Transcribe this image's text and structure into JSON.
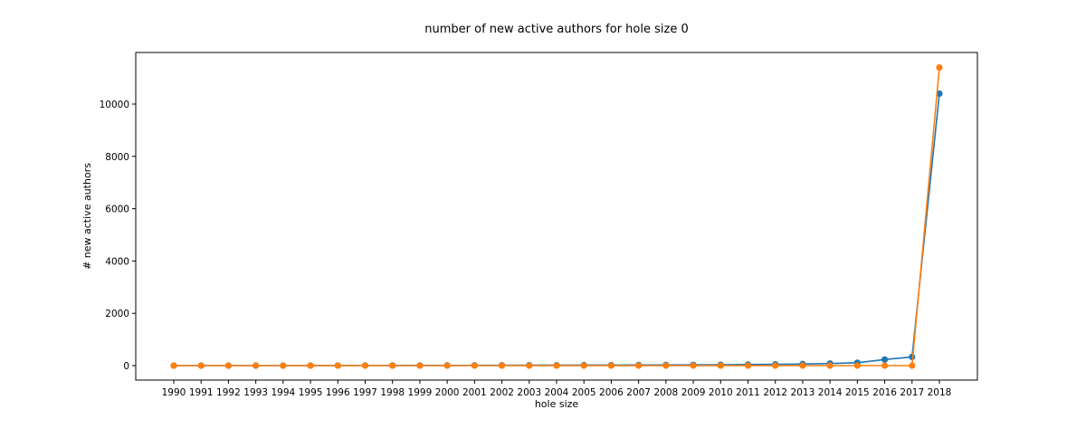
{
  "chart_data": {
    "type": "line",
    "title": "number of new active authors for hole size 0",
    "xlabel": "hole size",
    "ylabel": "# new active authors",
    "categories": [
      "1990",
      "1991",
      "1992",
      "1993",
      "1994",
      "1995",
      "1996",
      "1997",
      "1998",
      "1999",
      "2000",
      "2001",
      "2002",
      "2003",
      "2004",
      "2005",
      "2006",
      "2007",
      "2008",
      "2009",
      "2010",
      "2011",
      "2012",
      "2013",
      "2014",
      "2015",
      "2016",
      "2017",
      "2018"
    ],
    "ylim": [
      -500,
      12000
    ],
    "yticks": [
      0,
      2000,
      4000,
      6000,
      8000,
      10000
    ],
    "ytick_labels": [
      "0",
      "2000",
      "4000",
      "6000",
      "8000",
      "10000"
    ],
    "grid": false,
    "legend": "none",
    "series": [
      {
        "color": "#1f77b4",
        "marker": "circle",
        "values": [
          0,
          0,
          0,
          0,
          0,
          2,
          3,
          4,
          5,
          6,
          8,
          10,
          12,
          14,
          16,
          18,
          20,
          22,
          25,
          28,
          32,
          40,
          50,
          60,
          80,
          110,
          230,
          330,
          10400
        ]
      },
      {
        "color": "#ff7f0e",
        "marker": "circle",
        "values": [
          0,
          0,
          0,
          0,
          0,
          0,
          0,
          0,
          0,
          0,
          0,
          0,
          0,
          0,
          0,
          0,
          0,
          0,
          0,
          0,
          0,
          0,
          0,
          0,
          0,
          0,
          0,
          0,
          11400
        ]
      }
    ]
  }
}
